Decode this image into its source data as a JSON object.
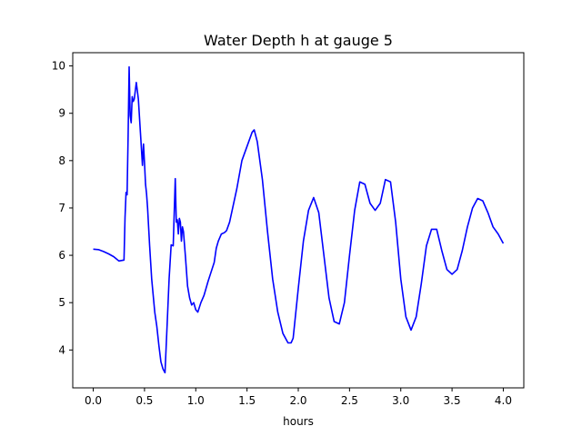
{
  "chart_data": {
    "type": "line",
    "title": "Water Depth h at gauge 5",
    "xlabel": "hours",
    "ylabel": "",
    "xlim": [
      -0.2,
      4.2
    ],
    "ylim": [
      3.2,
      10.28
    ],
    "xticks": [
      0.0,
      0.5,
      1.0,
      1.5,
      2.0,
      2.5,
      3.0,
      3.5,
      4.0
    ],
    "xtick_labels": [
      "0.0",
      "0.5",
      "1.0",
      "1.5",
      "2.0",
      "2.5",
      "3.0",
      "3.5",
      "4.0"
    ],
    "yticks": [
      4,
      5,
      6,
      7,
      8,
      9,
      10
    ],
    "ytick_labels": [
      "4",
      "5",
      "6",
      "7",
      "8",
      "9",
      "10"
    ],
    "grid": false,
    "series": [
      {
        "color": "#0000ff",
        "x": [
          0.0,
          0.05,
          0.1,
          0.15,
          0.2,
          0.25,
          0.3,
          0.31,
          0.32,
          0.33,
          0.34,
          0.35,
          0.36,
          0.37,
          0.38,
          0.39,
          0.4,
          0.42,
          0.44,
          0.46,
          0.48,
          0.49,
          0.5,
          0.51,
          0.52,
          0.53,
          0.54,
          0.55,
          0.57,
          0.6,
          0.62,
          0.64,
          0.66,
          0.68,
          0.7,
          0.72,
          0.74,
          0.76,
          0.78,
          0.8,
          0.81,
          0.82,
          0.83,
          0.84,
          0.85,
          0.86,
          0.87,
          0.88,
          0.9,
          0.92,
          0.94,
          0.96,
          0.98,
          1.0,
          1.02,
          1.05,
          1.08,
          1.1,
          1.12,
          1.15,
          1.18,
          1.2,
          1.22,
          1.25,
          1.28,
          1.3,
          1.33,
          1.36,
          1.4,
          1.45,
          1.5,
          1.55,
          1.57,
          1.6,
          1.65,
          1.7,
          1.75,
          1.8,
          1.85,
          1.9,
          1.93,
          1.95,
          2.0,
          2.05,
          2.1,
          2.15,
          2.2,
          2.25,
          2.3,
          2.35,
          2.4,
          2.45,
          2.5,
          2.55,
          2.6,
          2.65,
          2.7,
          2.75,
          2.8,
          2.85,
          2.9,
          2.95,
          3.0,
          3.05,
          3.1,
          3.15,
          3.2,
          3.25,
          3.3,
          3.35,
          3.4,
          3.45,
          3.5,
          3.55,
          3.6,
          3.65,
          3.7,
          3.75,
          3.8,
          3.85,
          3.9,
          3.95,
          4.0
        ],
        "y": [
          6.13,
          6.12,
          6.08,
          6.03,
          5.97,
          5.88,
          5.9,
          6.8,
          7.33,
          7.28,
          8.5,
          9.98,
          8.95,
          8.8,
          9.35,
          9.25,
          9.3,
          9.65,
          9.3,
          8.6,
          7.9,
          8.35,
          7.95,
          7.5,
          7.3,
          7.0,
          6.6,
          6.2,
          5.5,
          4.8,
          4.5,
          4.1,
          3.75,
          3.6,
          3.52,
          4.5,
          5.5,
          6.22,
          6.2,
          7.62,
          6.7,
          6.75,
          6.45,
          6.78,
          6.7,
          6.3,
          6.6,
          6.5,
          5.95,
          5.35,
          5.1,
          4.95,
          5.0,
          4.85,
          4.8,
          5.0,
          5.15,
          5.3,
          5.45,
          5.65,
          5.85,
          6.15,
          6.3,
          6.45,
          6.48,
          6.52,
          6.7,
          7.0,
          7.4,
          8.0,
          8.3,
          8.6,
          8.65,
          8.4,
          7.6,
          6.5,
          5.5,
          4.8,
          4.35,
          4.15,
          4.15,
          4.25,
          5.3,
          6.3,
          6.95,
          7.22,
          6.9,
          6.0,
          5.1,
          4.6,
          4.55,
          5.0,
          6.0,
          6.95,
          7.55,
          7.5,
          7.1,
          6.95,
          7.1,
          7.6,
          7.55,
          6.7,
          5.5,
          4.7,
          4.42,
          4.7,
          5.4,
          6.2,
          6.55,
          6.55,
          6.1,
          5.7,
          5.6,
          5.7,
          6.1,
          6.6,
          7.0,
          7.2,
          7.15,
          6.9,
          6.6,
          6.45,
          6.25
        ]
      }
    ]
  }
}
